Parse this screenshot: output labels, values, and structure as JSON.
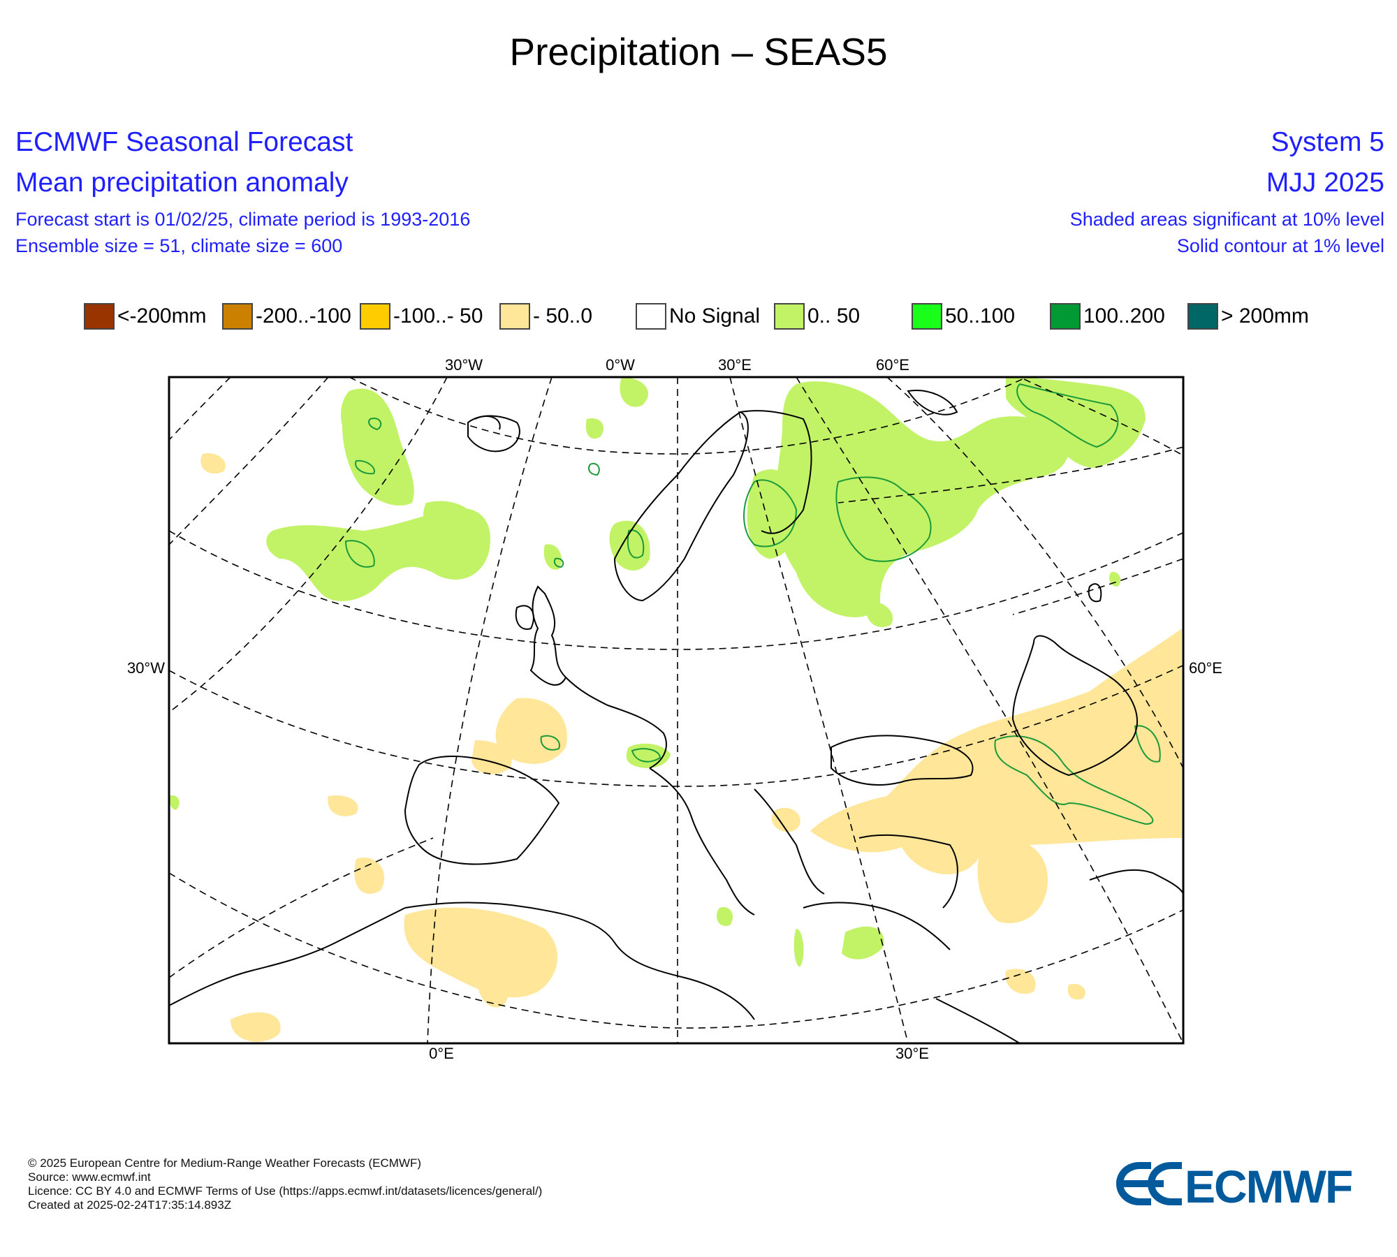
{
  "title": "Precipitation – SEAS5",
  "header": {
    "left_line1": "ECMWF Seasonal Forecast",
    "left_line2": "Mean precipitation anomaly",
    "left_line3": "Forecast start is 01/02/25, climate period is 1993-2016",
    "left_line4": "Ensemble size = 51, climate size = 600",
    "right_line1": "System 5",
    "right_line2": "MJJ 2025",
    "right_line3": "Shaded areas significant at 10% level",
    "right_line4": "Solid contour at 1% level"
  },
  "legend": [
    {
      "label": "<-200mm",
      "color": "#993300"
    },
    {
      "label": "-200..-100",
      "color": "#cc8000"
    },
    {
      "label": "-100..- 50",
      "color": "#ffcc00"
    },
    {
      "label": "- 50..0",
      "color": "#ffe699"
    },
    {
      "label": "No Signal",
      "color": "#ffffff"
    },
    {
      "label": "0.. 50",
      "color": "#c2f266"
    },
    {
      "label": "50..100",
      "color": "#19ff19"
    },
    {
      "label": "100..200",
      "color": "#009933"
    },
    {
      "label": "> 200mm",
      "color": "#006666"
    }
  ],
  "map": {
    "top_labels": [
      "30°W",
      "0°W",
      "30°E",
      "60°E"
    ],
    "left_label": "30°W",
    "right_label": "60°E",
    "bottom_labels": [
      "0°E",
      "30°E"
    ],
    "colors": {
      "wet": "#c2f266",
      "dry": "#ffe699",
      "contour": "#1b9a3a",
      "coast": "#000000"
    }
  },
  "footer": {
    "line1": "© 2025 European Centre for Medium-Range Weather Forecasts (ECMWF)",
    "line2": "Source: www.ecmwf.int",
    "line3": "Licence: CC BY 4.0 and ECMWF Terms of Use (https://apps.ecmwf.int/datasets/licences/general/)",
    "line4": "Created at 2025-02-24T17:35:14.893Z"
  },
  "logo": {
    "text": "ECMWF",
    "color": "#005a9c"
  }
}
